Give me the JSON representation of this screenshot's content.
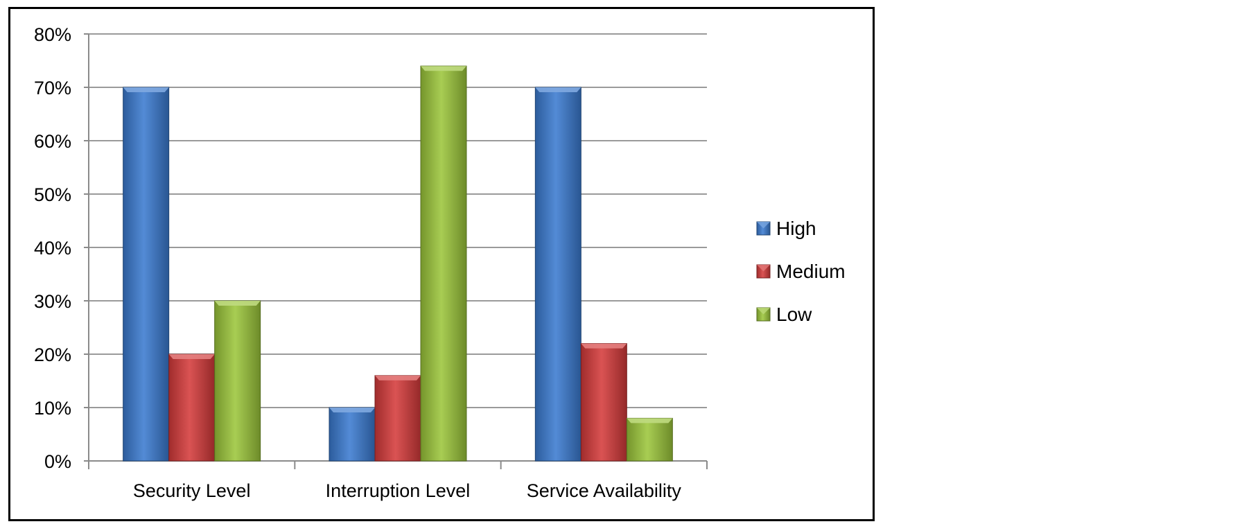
{
  "chart_data": {
    "type": "bar",
    "categories": [
      "Security Level",
      "Interruption Level",
      "Service Availability"
    ],
    "series": [
      {
        "name": "High",
        "values": [
          70,
          10,
          70
        ],
        "color": "#3b7bd0"
      },
      {
        "name": "Medium",
        "values": [
          20,
          16,
          22
        ],
        "color": "#d53b3b"
      },
      {
        "name": "Low",
        "values": [
          30,
          74,
          8
        ],
        "color": "#9cc63b"
      }
    ],
    "yticks": [
      "0%",
      "10%",
      "20%",
      "30%",
      "40%",
      "50%",
      "60%",
      "70%",
      "80%"
    ],
    "ylim": [
      0,
      80
    ],
    "grid": true,
    "legend_position": "right"
  }
}
